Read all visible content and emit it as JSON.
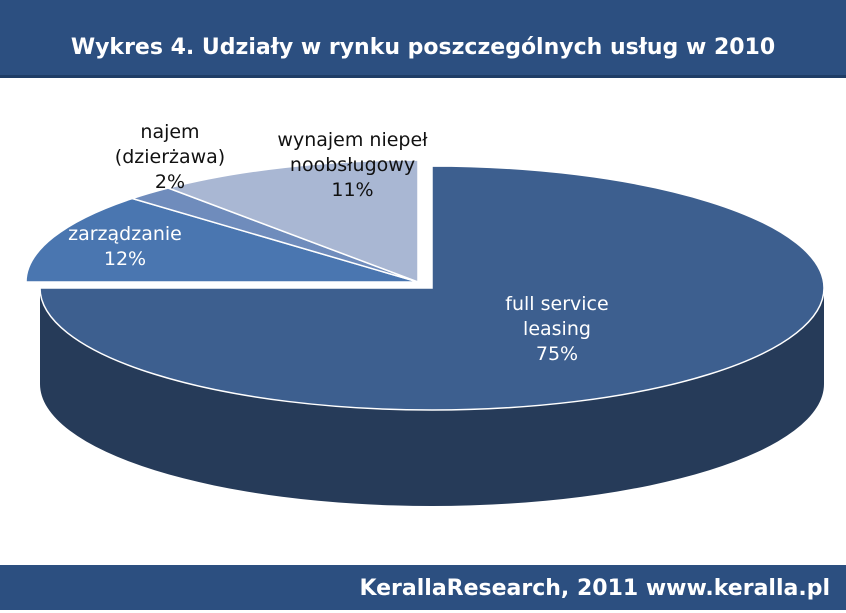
{
  "chart_data": {
    "type": "pie",
    "title": "Wykres 4. Udziały w rynku poszczególnych usług w 2010",
    "categories": [
      "full service leasing",
      "zarządzanie",
      "najem (dzierżawa)",
      "wynajem niepełnoobsługowy"
    ],
    "values": [
      75,
      12,
      2,
      11
    ],
    "value_labels": [
      "75%",
      "12%",
      "2%",
      "11%"
    ],
    "colors": [
      "#3d5f8f",
      "#4a76b0",
      "#6f8cbc",
      "#a9b7d3"
    ],
    "source": "KerallaResearch, 2011 www.keralla.pl"
  }
}
